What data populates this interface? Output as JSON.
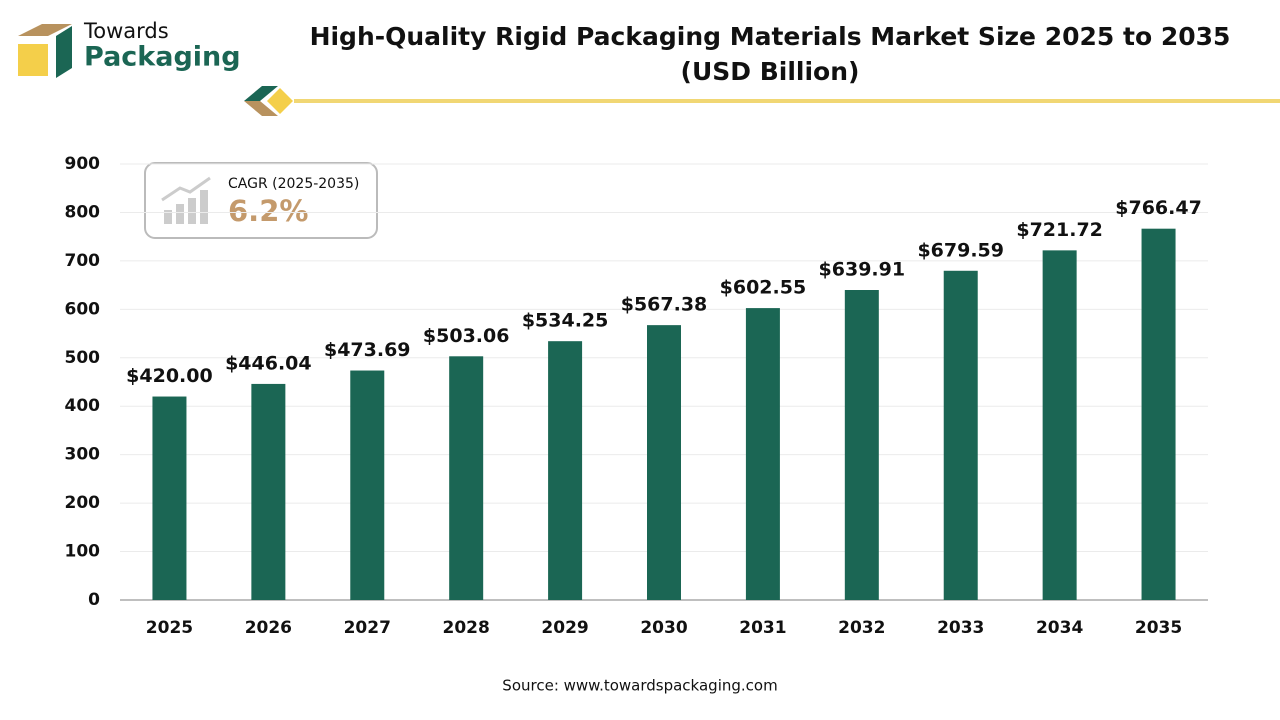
{
  "logo": {
    "line1": "Towards",
    "line2": "Packaging"
  },
  "cagr": {
    "label": "CAGR (2025-2035)",
    "value": "6.2%"
  },
  "chart_data": {
    "type": "bar",
    "title": [
      "High-Quality Rigid Packaging Materials Market Size 2025 to 2035",
      "(USD Billion)"
    ],
    "categories": [
      "2025",
      "2026",
      "2027",
      "2028",
      "2029",
      "2030",
      "2031",
      "2032",
      "2033",
      "2034",
      "2035"
    ],
    "values": [
      420.0,
      446.04,
      473.69,
      503.06,
      534.25,
      567.38,
      602.55,
      639.91,
      679.59,
      721.72,
      766.47
    ],
    "value_labels": [
      "$420.00",
      "$446.04",
      "$473.69",
      "$503.06",
      "$534.25",
      "$567.38",
      "$602.55",
      "$639.91",
      "$679.59",
      "$721.72",
      "$766.47"
    ],
    "color": "#1b6654",
    "ylim": [
      0,
      900
    ],
    "yticks": [
      0,
      100,
      200,
      300,
      400,
      500,
      600,
      700,
      800,
      900
    ],
    "grid": true,
    "source": "Source: www.towardspackaging.com"
  }
}
